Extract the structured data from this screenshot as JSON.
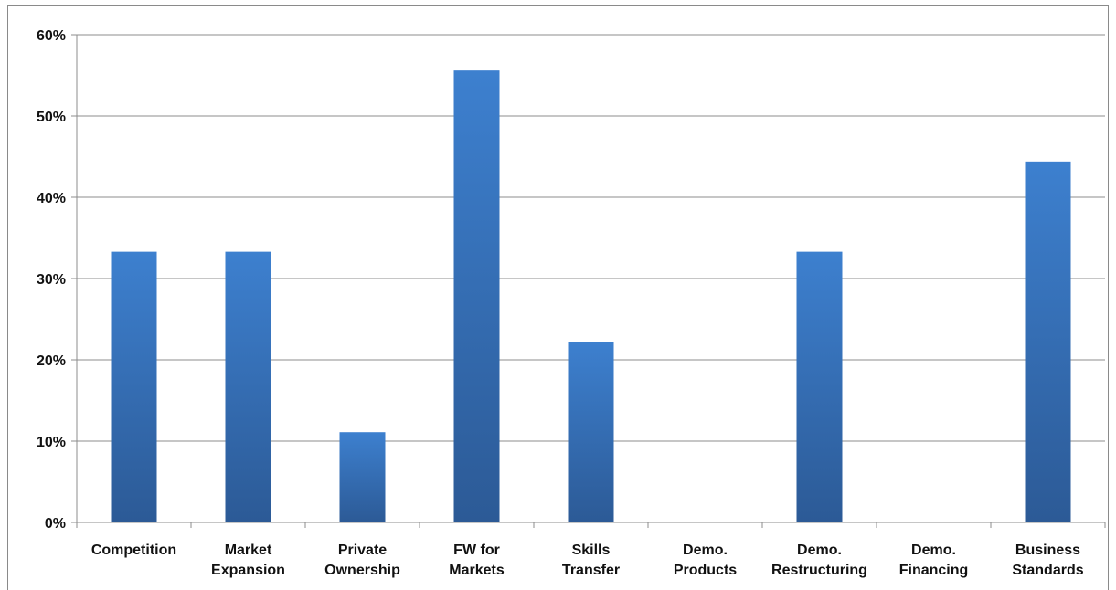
{
  "chart_data": {
    "type": "bar",
    "categories": [
      [
        "Competition"
      ],
      [
        "Market",
        "Expansion"
      ],
      [
        "Private",
        "Ownership"
      ],
      [
        "FW for",
        "Markets"
      ],
      [
        "Skills",
        "Transfer"
      ],
      [
        "Demo.",
        "Products"
      ],
      [
        "Demo.",
        "Restructuring"
      ],
      [
        "Demo.",
        "Financing"
      ],
      [
        "Business",
        "Standards"
      ]
    ],
    "values": [
      33.3,
      33.3,
      11.1,
      55.6,
      22.2,
      0,
      33.3,
      0,
      44.4
    ],
    "y_ticks": [
      "0%",
      "10%",
      "20%",
      "30%",
      "40%",
      "50%",
      "60%"
    ],
    "ylim": [
      0,
      60
    ],
    "grid": true,
    "legend": "none",
    "colors": {
      "bar_top": "#3d80cf",
      "bar_bottom": "#2c5a96",
      "grid": "#8c8c8c",
      "axis": "#8c8c8c"
    }
  }
}
